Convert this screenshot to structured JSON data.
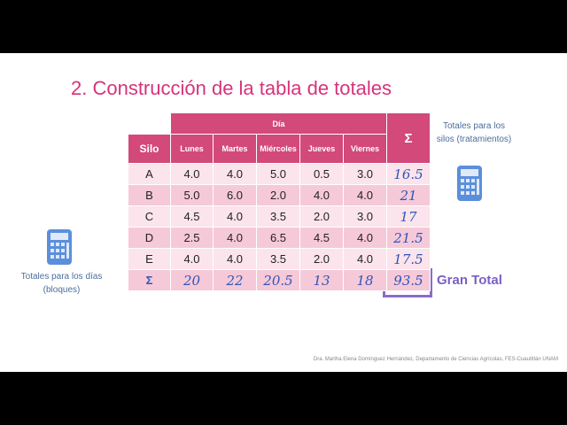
{
  "title": "2. Construcción de la tabla de totales",
  "table": {
    "group_header": "Día",
    "sum_header": "Σ",
    "row_header": "Silo",
    "days": [
      "Lunes",
      "Martes",
      "Miércoles",
      "Jueves",
      "Viernes"
    ],
    "rows": [
      {
        "label": "A",
        "values": [
          "4.0",
          "4.0",
          "5.0",
          "0.5",
          "3.0"
        ],
        "total": "16.5"
      },
      {
        "label": "B",
        "values": [
          "5.0",
          "6.0",
          "2.0",
          "4.0",
          "4.0"
        ],
        "total": "21"
      },
      {
        "label": "C",
        "values": [
          "4.5",
          "4.0",
          "3.5",
          "2.0",
          "3.0"
        ],
        "total": "17"
      },
      {
        "label": "D",
        "values": [
          "2.5",
          "4.0",
          "6.5",
          "4.5",
          "4.0"
        ],
        "total": "21.5"
      },
      {
        "label": "E",
        "values": [
          "4.0",
          "4.0",
          "3.5",
          "2.0",
          "4.0"
        ],
        "total": "17.5"
      }
    ],
    "sum_row": {
      "label": "Σ",
      "values": [
        "20",
        "22",
        "20.5",
        "13",
        "18"
      ],
      "total": "93.5"
    }
  },
  "notes": {
    "silos": "Totales para los silos (tratamientos)",
    "days": "Totales para los días (bloques)",
    "grand_total": "Gran Total"
  },
  "credit": "Dra. Martha Elena Domínguez Hernández, Departamento de Ciencias Agrícolas, FES-Cuautitlán UNAM"
}
